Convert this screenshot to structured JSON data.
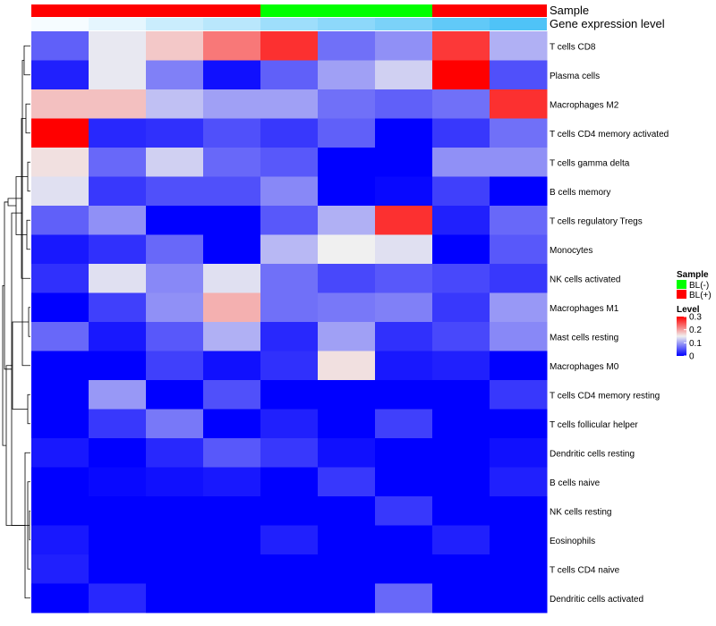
{
  "chart_data": {
    "type": "heatmap",
    "annotation_track_labels": [
      "Sample",
      "Gene expression level"
    ],
    "samples": {
      "group": [
        "BL(+)",
        "BL(+)",
        "BL(+)",
        "BL(+)",
        "BL(-)",
        "BL(-)",
        "BL(-)",
        "BL(+)",
        "BL(+)"
      ],
      "expression_level": [
        0.05,
        0.15,
        0.3,
        0.4,
        0.55,
        0.65,
        0.75,
        0.9,
        1.0
      ]
    },
    "rows": [
      "T cells CD8",
      "Plasma cells",
      "Macrophages M2",
      "T cells CD4 memory activated",
      "T cells gamma delta",
      "B cells memory",
      "T cells regulatory  Tregs",
      "Monocytes",
      "NK cells activated",
      "Macrophages M1",
      "Mast cells resting",
      "Macrophages M0",
      "T cells CD4 memory resting",
      "T cells follicular helper",
      "Dendritic cells resting",
      "B cells naive",
      "NK cells resting",
      "Eosinophils",
      "T cells CD4 naive",
      "Dendritic cells activated"
    ],
    "values": [
      [
        0.06,
        0.145,
        0.175,
        0.225,
        0.27,
        0.07,
        0.09,
        0.265,
        0.11
      ],
      [
        0.02,
        0.145,
        0.08,
        0.01,
        0.06,
        0.1,
        0.13,
        0.3,
        0.05
      ],
      [
        0.18,
        0.18,
        0.12,
        0.1,
        0.1,
        0.07,
        0.06,
        0.07,
        0.27
      ],
      [
        0.3,
        0.025,
        0.03,
        0.05,
        0.035,
        0.06,
        0.0,
        0.035,
        0.07
      ],
      [
        0.16,
        0.065,
        0.13,
        0.065,
        0.055,
        0.0,
        0.0,
        0.09,
        0.09
      ],
      [
        0.14,
        0.035,
        0.05,
        0.05,
        0.085,
        0.0,
        0.005,
        0.04,
        0.0
      ],
      [
        0.06,
        0.09,
        0.0,
        0.0,
        0.055,
        0.11,
        0.27,
        0.02,
        0.065
      ],
      [
        0.015,
        0.03,
        0.065,
        0.0,
        0.115,
        0.15,
        0.14,
        0.0,
        0.055
      ],
      [
        0.03,
        0.14,
        0.085,
        0.14,
        0.07,
        0.045,
        0.055,
        0.045,
        0.035
      ],
      [
        0.0,
        0.04,
        0.09,
        0.19,
        0.07,
        0.075,
        0.08,
        0.035,
        0.095
      ],
      [
        0.065,
        0.015,
        0.055,
        0.11,
        0.025,
        0.1,
        0.03,
        0.045,
        0.085
      ],
      [
        0.0,
        0.0,
        0.04,
        0.01,
        0.03,
        0.16,
        0.015,
        0.02,
        0.0
      ],
      [
        0.0,
        0.095,
        0.0,
        0.05,
        0.0,
        0.0,
        0.0,
        0.0,
        0.035
      ],
      [
        0.0,
        0.035,
        0.075,
        0.0,
        0.02,
        0.0,
        0.04,
        0.0,
        0.0
      ],
      [
        0.015,
        0.0,
        0.025,
        0.055,
        0.035,
        0.01,
        0.0,
        0.0,
        0.01
      ],
      [
        0.0,
        0.005,
        0.01,
        0.015,
        0.0,
        0.035,
        0.0,
        0.0,
        0.02
      ],
      [
        0.0,
        0.0,
        0.0,
        0.0,
        0.0,
        0.0,
        0.035,
        0.0,
        0.0
      ],
      [
        0.015,
        0.0,
        0.0,
        0.0,
        0.02,
        0.0,
        0.0,
        0.02,
        0.0
      ],
      [
        0.02,
        0.0,
        0.0,
        0.0,
        0.0,
        0.0,
        0.0,
        0.0,
        0.0
      ],
      [
        0.0,
        0.025,
        0.0,
        0.0,
        0.0,
        0.0,
        0.065,
        0.0,
        0.0
      ]
    ],
    "color_scale": {
      "range": [
        0,
        0.3
      ],
      "stops": [
        {
          "value": 0,
          "color": "#0000ff"
        },
        {
          "value": 0.15,
          "color": "#f0f0f0"
        },
        {
          "value": 0.3,
          "color": "#ff0000"
        }
      ]
    },
    "legend": {
      "placement": "right",
      "sample": {
        "title": "Sample",
        "entries": [
          {
            "label": "BL(-)",
            "color": "#00ff00"
          },
          {
            "label": "BL(+)",
            "color": "#ff0000"
          }
        ]
      },
      "level": {
        "title": "Level",
        "ticks": [
          {
            "value": 0.3,
            "label": "0.3"
          },
          {
            "value": 0.2,
            "label": "0.2"
          },
          {
            "value": 0.1,
            "label": "0.1"
          },
          {
            "value": 0,
            "label": "0"
          }
        ]
      }
    },
    "group_colors": {
      "BL(-)": "#00ff00",
      "BL(+)": "#ff0000"
    },
    "expression_colors": [
      "#ffffff",
      "#4fc3f7"
    ],
    "row_dendrogram": true
  }
}
